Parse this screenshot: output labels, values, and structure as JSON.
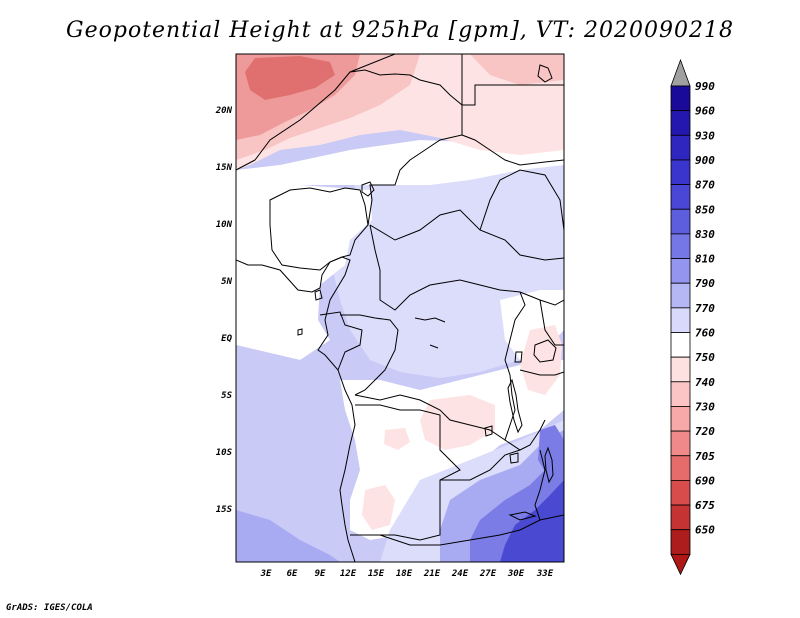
{
  "title": "Geopotential Height at 925hPa [gpm], VT: 2020090218",
  "credit": "GrADS: IGES/COLA",
  "map": {
    "lat_ticks": [
      "20N",
      "15N",
      "10N",
      "5N",
      "EQ",
      "5S",
      "10S",
      "15S"
    ],
    "lon_ticks": [
      "3E",
      "6E",
      "9E",
      "12E",
      "15E",
      "18E",
      "21E",
      "24E",
      "27E",
      "30E",
      "33E"
    ]
  },
  "colorbar": {
    "levels": [
      "990",
      "960",
      "930",
      "900",
      "870",
      "850",
      "830",
      "810",
      "790",
      "770",
      "760",
      "750",
      "740",
      "730",
      "720",
      "705",
      "690",
      "675",
      "650"
    ],
    "colors": [
      "#1a0a9a",
      "#2417b0",
      "#2f26c0",
      "#3a35cc",
      "#4a47d6",
      "#5c5ede",
      "#7677e6",
      "#9495ef",
      "#b5b7f5",
      "#d8d9fb",
      "#ffffff",
      "#fde0e0",
      "#fbc5c5",
      "#f7a8a8",
      "#f08a8a",
      "#e66b6b",
      "#d84c4c",
      "#c63333",
      "#ad1d1d"
    ],
    "top_arrow_color": "#a0a0a0",
    "bottom_arrow_color": "#b01818"
  },
  "fills": {
    "ocean_light": "#c9caf6",
    "land_light": "#dcdcfb",
    "white": "#ffffff",
    "pink_light": "#fde3e3",
    "pink_mid": "#f8c4c4",
    "red_mid": "#ee9a9a",
    "red_dark": "#e07070",
    "blue_mid": "#a9abf2",
    "blue_dark": "#7b7ce6",
    "blue_deep": "#4a49d2"
  }
}
